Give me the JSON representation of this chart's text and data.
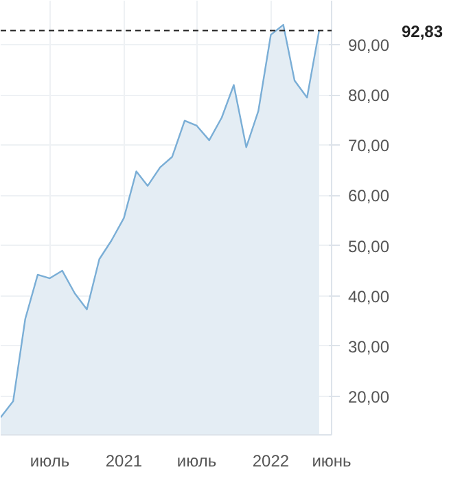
{
  "chart_data": {
    "type": "area",
    "x": [
      "2020-03",
      "2020-04",
      "2020-05",
      "2020-06",
      "2020-07",
      "2020-08",
      "2020-09",
      "2020-10",
      "2020-11",
      "2020-12",
      "2021-01",
      "2021-02",
      "2021-03",
      "2021-04",
      "2021-05",
      "2021-06",
      "2021-07",
      "2021-08",
      "2021-09",
      "2021-10",
      "2021-11",
      "2021-12",
      "2022-01",
      "2022-02",
      "2022-03",
      "2022-04",
      "2022-05"
    ],
    "series": [
      {
        "color": "#7aaed6",
        "values": [
          15.8,
          19,
          35.4,
          44.2,
          43.5,
          45,
          40.5,
          37.3,
          47.3,
          51,
          55.5,
          64.8,
          61.9,
          65.6,
          67.7,
          74.9,
          73.9,
          71,
          75.5,
          82,
          69.6,
          76.8,
          92,
          94,
          82.9,
          79.5,
          92.83
        ]
      }
    ],
    "xlim": [
      "2020-03-01",
      "2022-06-01"
    ],
    "xticks": [
      {
        "value": "2020-07-01",
        "label": "июль"
      },
      {
        "value": "2021-01-01",
        "label": "2021"
      },
      {
        "value": "2021-07-01",
        "label": "июль"
      },
      {
        "value": "2022-01-01",
        "label": "2022"
      },
      {
        "value": "2022-06-01",
        "label": "июнь"
      }
    ],
    "ylim": [
      12.3,
      98.8
    ],
    "yticks": [
      {
        "value": 20,
        "label": "20,00"
      },
      {
        "value": 30,
        "label": "30,00"
      },
      {
        "value": 40,
        "label": "40,00"
      },
      {
        "value": 50,
        "label": "50,00"
      },
      {
        "value": 60,
        "label": "60,00"
      },
      {
        "value": 70,
        "label": "70,00"
      },
      {
        "value": 80,
        "label": "80,00"
      },
      {
        "value": 90,
        "label": "90,00"
      }
    ],
    "ref_lines": [
      {
        "axis": "y",
        "value": 92.83,
        "label": "92,83",
        "color": "#222222",
        "line_style": "dashed"
      }
    ],
    "grid": true
  }
}
